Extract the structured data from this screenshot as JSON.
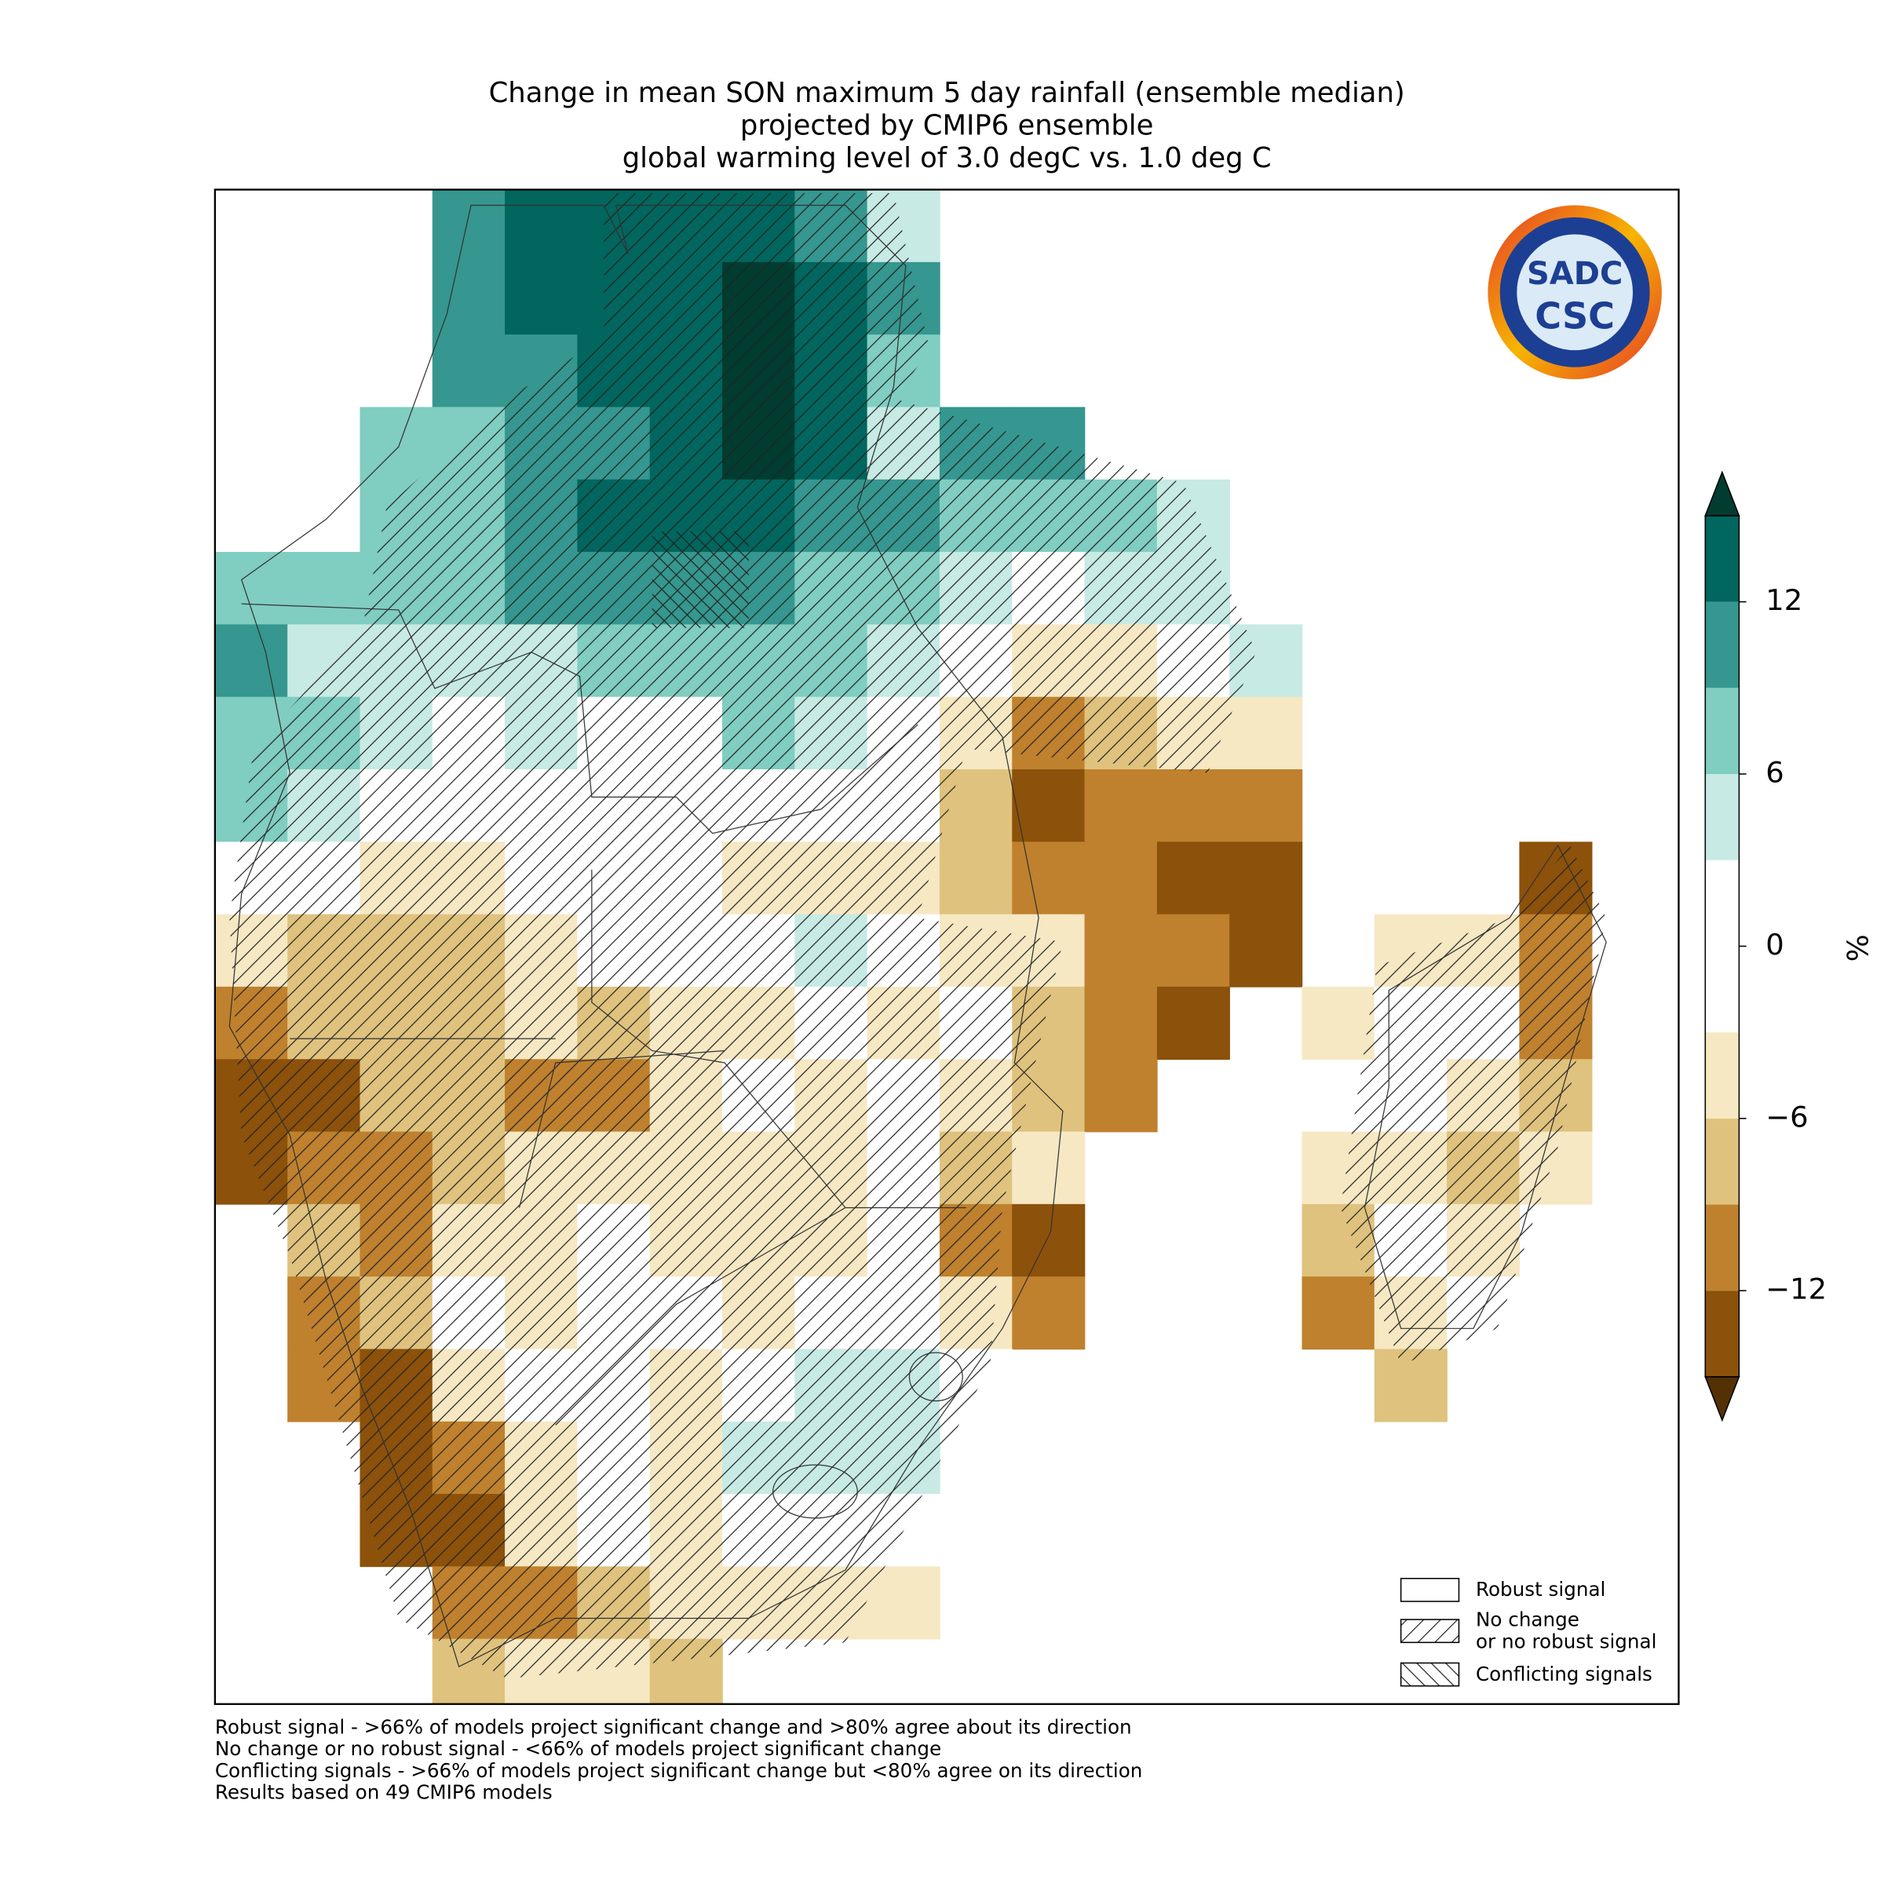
{
  "title": [
    "Change in mean SON maximum 5 day rainfall (ensemble median)",
    "projected by CMIP6 ensemble",
    "global warming level of 3.0 degC vs. 1.0 deg C"
  ],
  "logo": {
    "name": "SADC",
    "abbr": "CSC"
  },
  "colorbar": {
    "label": "%",
    "lim": [
      -15,
      15
    ],
    "ticks": [
      {
        "value": -12,
        "label": "−12"
      },
      {
        "value": -6,
        "label": "−6"
      },
      0,
      6,
      12
    ],
    "bounds": [
      -15,
      -12,
      -9,
      -6,
      -3,
      3,
      6,
      9,
      12,
      15
    ],
    "colors": [
      "#8c510a",
      "#bf812d",
      "#dfc27d",
      "#f6e8c3",
      "#ffffff",
      "#c7eae5",
      "#80cdc1",
      "#35978f",
      "#01665e"
    ],
    "under_color": "#543005",
    "over_color": "#003c30"
  },
  "legend": [
    {
      "lines": [
        "Robust signal"
      ],
      "hatch": "none"
    },
    {
      "lines": [
        "No change",
        "or no robust signal"
      ],
      "hatch": "forward"
    },
    {
      "lines": [
        "Conflicting signals"
      ],
      "hatch": "back"
    }
  ],
  "notes": [
    "Robust signal - >66% of models project significant change and >80% agree about its direction",
    "No change or no robust signal - <66% of models project significant change",
    "Conflicting signals - >66% of models project significant change but <80% agree on its direction",
    "Results based on 49 CMIP6 models"
  ],
  "map": {
    "grid": [
      [
        null,
        null,
        null,
        10,
        13,
        13,
        13,
        13,
        10,
        5,
        null,
        null,
        null,
        null,
        null,
        null,
        null,
        null,
        null
      ],
      [
        null,
        null,
        null,
        10,
        13,
        13,
        14,
        15,
        13,
        10,
        null,
        null,
        null,
        null,
        null,
        null,
        null,
        null,
        null
      ],
      [
        null,
        null,
        null,
        10,
        10,
        12,
        12,
        15,
        13,
        7,
        null,
        null,
        null,
        null,
        null,
        null,
        null,
        null,
        null
      ],
      [
        null,
        null,
        7,
        8,
        10,
        10,
        12,
        15,
        12,
        5,
        10,
        10,
        null,
        null,
        null,
        null,
        null,
        null,
        null
      ],
      [
        null,
        null,
        7,
        7,
        10,
        12,
        12,
        14,
        10,
        10,
        8,
        8,
        7,
        5,
        null,
        null,
        null,
        null,
        null
      ],
      [
        8,
        8,
        8,
        7,
        10,
        10,
        10,
        10,
        8,
        7,
        5,
        2,
        4,
        5,
        null,
        null,
        null,
        null,
        null
      ],
      [
        9,
        5,
        5,
        5,
        5,
        7,
        7,
        8,
        7,
        4,
        -2,
        -4,
        -4,
        2,
        5,
        null,
        null,
        null,
        null
      ],
      [
        7,
        8,
        4,
        2,
        4,
        2,
        2,
        7,
        5,
        2,
        -5,
        -10,
        -8,
        -4,
        -4,
        null,
        null,
        null,
        null
      ],
      [
        6,
        5,
        1,
        1,
        1,
        1,
        1,
        1,
        0,
        -2,
        -8,
        -13,
        -12,
        -10,
        -12,
        null,
        null,
        null,
        null
      ],
      [
        1,
        1,
        -4,
        -4,
        -3,
        0,
        0,
        -4,
        -4,
        -6,
        -8,
        -10,
        -12,
        -14,
        -13,
        null,
        null,
        null,
        -14
      ],
      [
        -6,
        -8,
        -7,
        -7,
        -6,
        -2,
        0,
        1,
        4,
        -2,
        -4,
        -6,
        -10,
        -12,
        -13,
        null,
        -4,
        -6,
        -12
      ],
      [
        -12,
        -8,
        -9,
        -9,
        -6,
        -8,
        -5,
        -4,
        -2,
        -4,
        -2,
        -8,
        -10,
        -13,
        null,
        -5,
        0,
        -2,
        -11
      ],
      [
        -14,
        -14,
        -8,
        -9,
        -10,
        -11,
        -4,
        -2,
        -4,
        -2,
        -6,
        -9,
        -11,
        null,
        null,
        null,
        0,
        -4,
        -8
      ],
      [
        -13,
        -12,
        -10,
        -7,
        -6,
        -5,
        -4,
        -5,
        -4,
        -2,
        -9,
        -6,
        null,
        null,
        null,
        -5,
        -4,
        -7,
        -5
      ],
      [
        null,
        -7,
        -10,
        -6,
        -5,
        -3,
        -5,
        -4,
        -5,
        -3,
        -10,
        -13,
        null,
        null,
        null,
        -9,
        -3,
        -6,
        null
      ],
      [
        null,
        -11,
        -9,
        -1,
        -4,
        -3,
        -2,
        -4,
        -3,
        -2,
        -6,
        -10,
        null,
        null,
        null,
        -12,
        -4,
        -3,
        null
      ],
      [
        null,
        -12,
        -13,
        -5,
        -2,
        0,
        -4,
        0,
        4,
        4,
        0,
        null,
        null,
        null,
        null,
        null,
        -7,
        null,
        null
      ],
      [
        null,
        null,
        -13,
        -10,
        -6,
        -3,
        -4,
        5,
        5,
        5,
        null,
        null,
        null,
        null,
        null,
        null,
        null,
        null,
        null
      ],
      [
        null,
        null,
        -14,
        -13,
        -6,
        -2,
        -4,
        -1,
        0,
        2,
        null,
        null,
        null,
        null,
        null,
        null,
        null,
        null,
        null
      ],
      [
        null,
        null,
        null,
        -10,
        -10,
        -7,
        -6,
        -6,
        -4,
        -4,
        null,
        null,
        null,
        null,
        null,
        null,
        null,
        null,
        null
      ],
      [
        null,
        null,
        null,
        -8,
        -5,
        -6,
        -9,
        null,
        null,
        null,
        null,
        null,
        null,
        null,
        null,
        null,
        null,
        null,
        null
      ]
    ]
  }
}
